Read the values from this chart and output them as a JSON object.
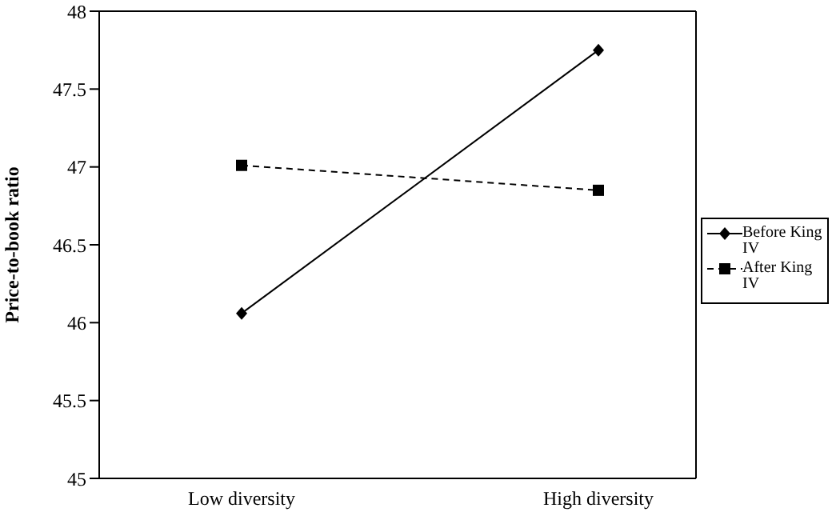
{
  "chart_data": {
    "type": "line",
    "ylabel": "Price-to-book ratio",
    "categories": [
      "Low diversity",
      "High diversity"
    ],
    "series": [
      {
        "name": "Before King IV",
        "color": "#000000",
        "values": [
          46.06,
          47.75
        ],
        "marker": "diamond",
        "line_style": "solid"
      },
      {
        "name": "After King IV",
        "color": "#000000",
        "values": [
          47.01,
          46.85
        ],
        "marker": "square",
        "line_style": "dashed"
      }
    ],
    "ylim": [
      45,
      48
    ],
    "yticks": [
      45,
      45.5,
      46,
      46.5,
      47,
      47.5,
      48
    ],
    "grid": false,
    "legend": "right"
  }
}
